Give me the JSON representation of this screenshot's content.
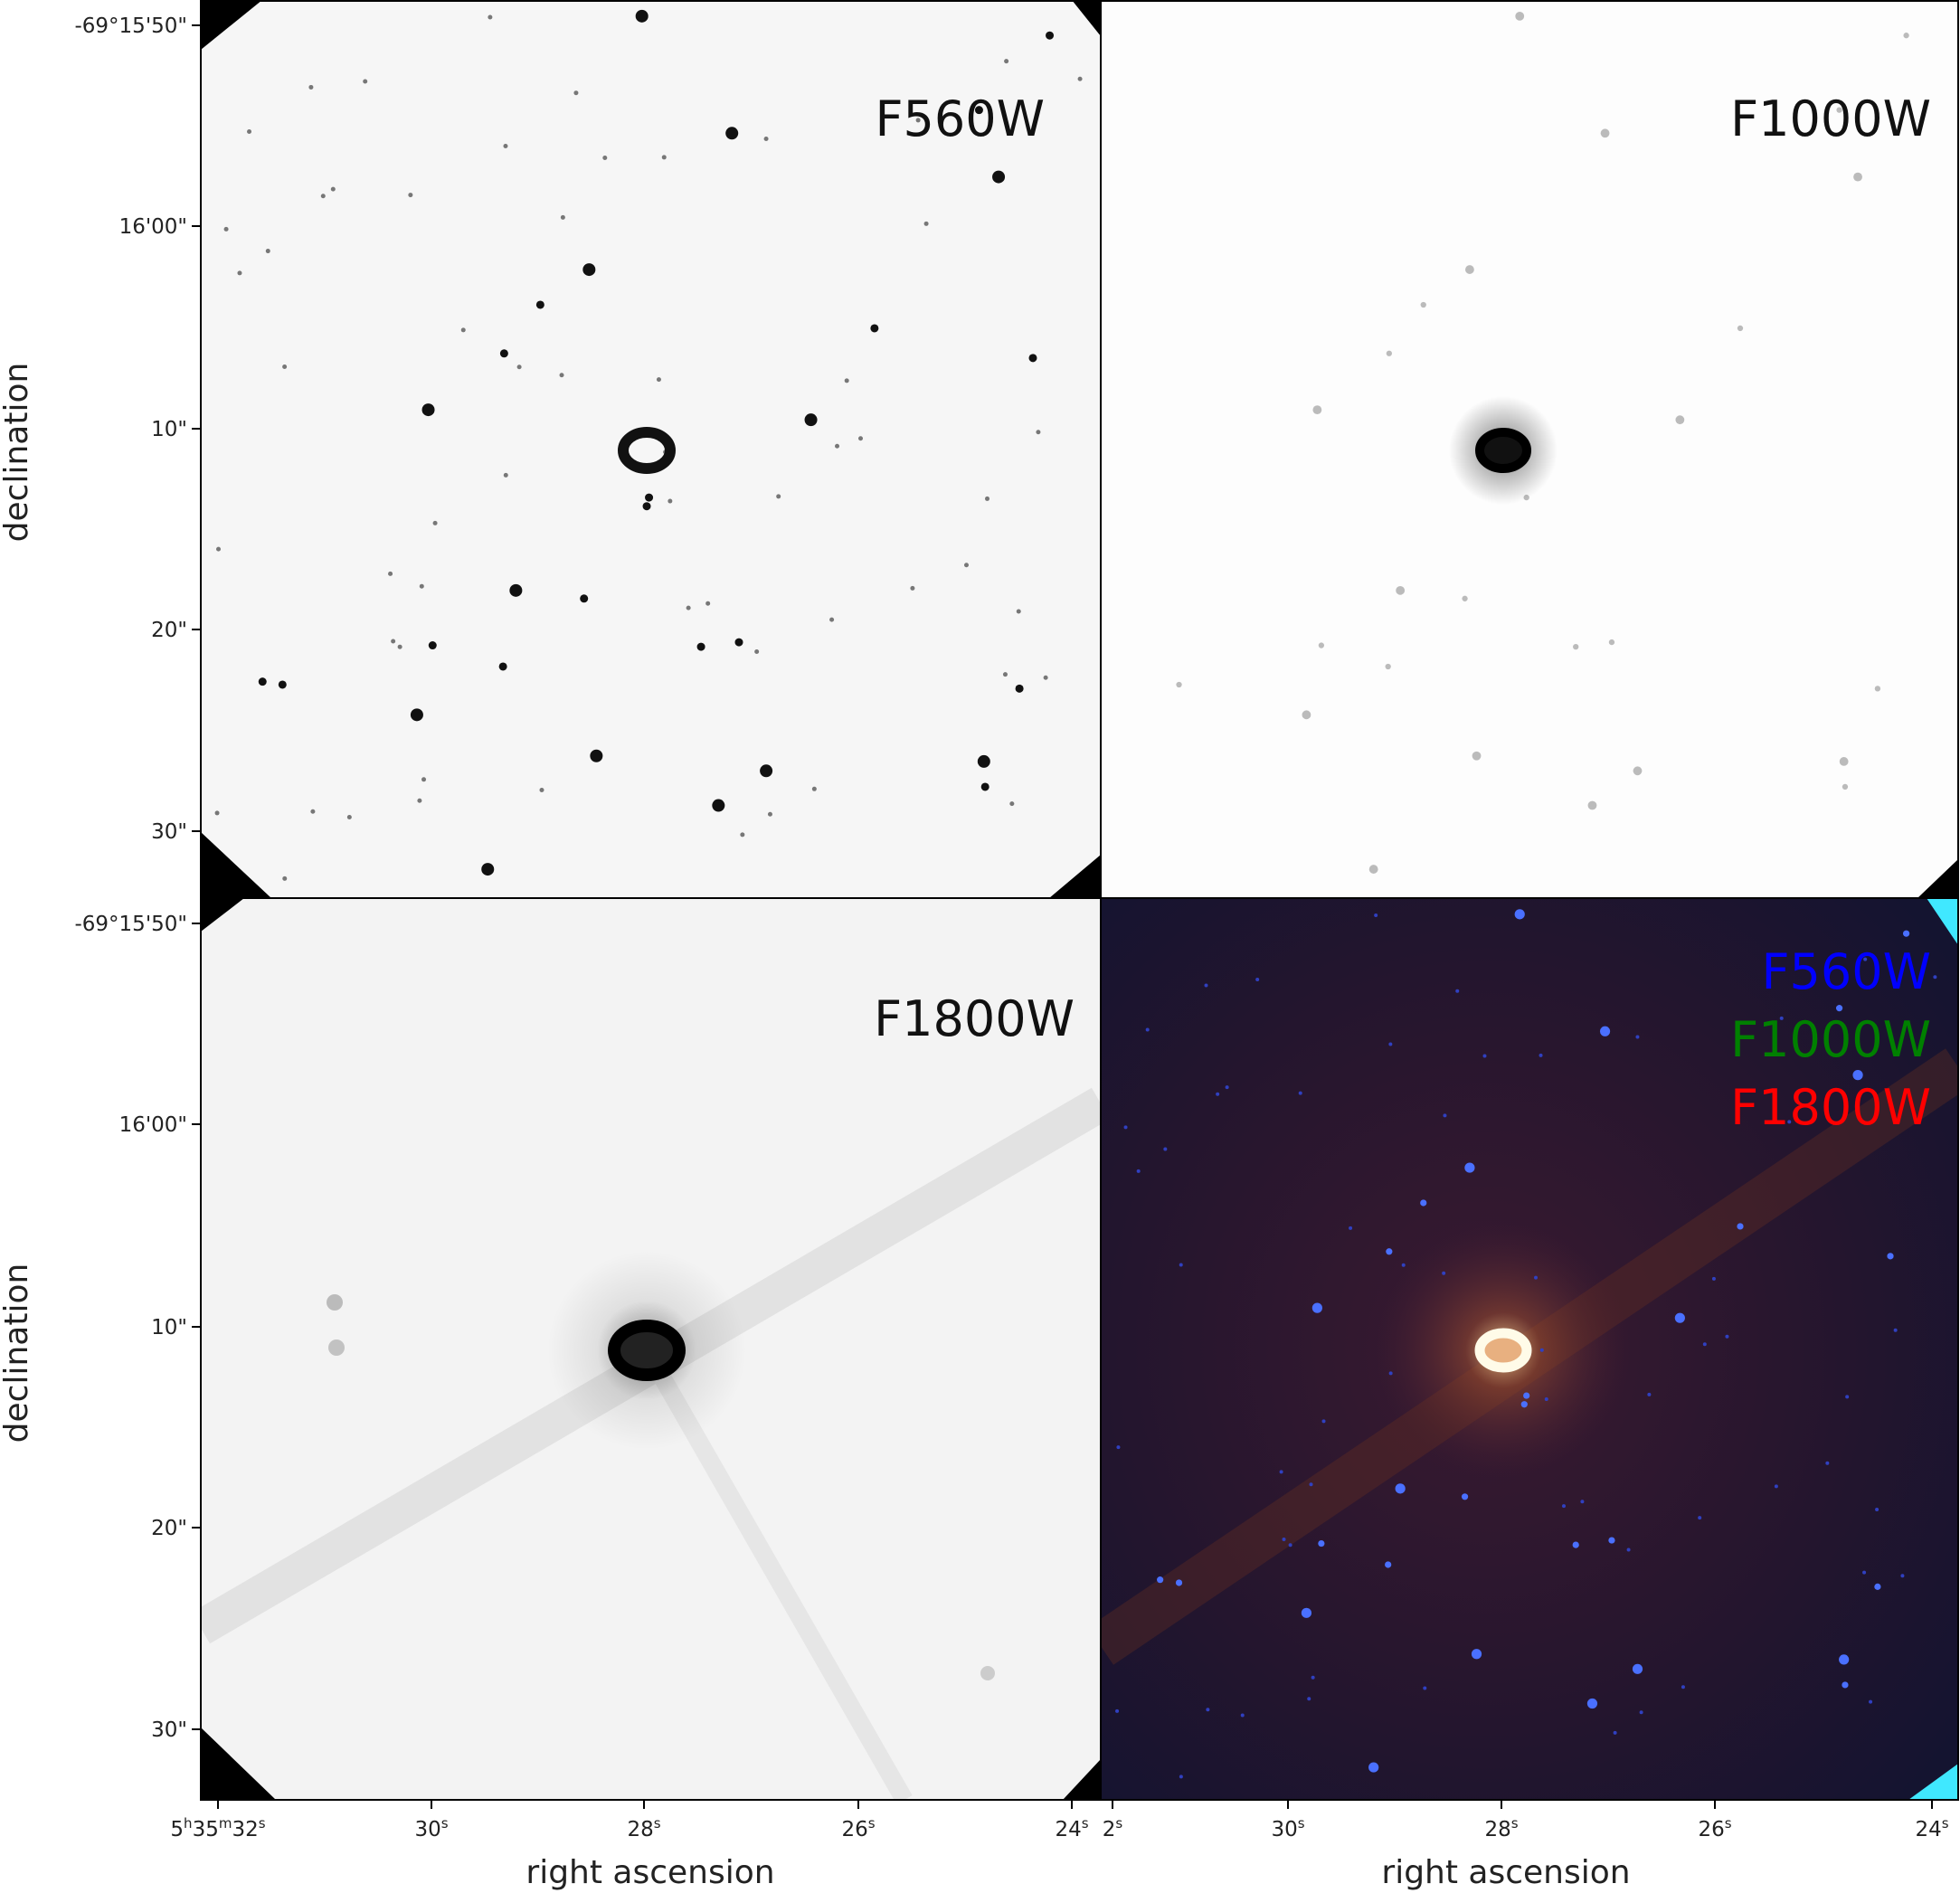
{
  "panels": [
    {
      "label": "F560W",
      "style": "grayscale"
    },
    {
      "label": "F1000W",
      "style": "grayscale"
    },
    {
      "label": "F1800W",
      "style": "grayscale"
    },
    {
      "style": "rgb-composite",
      "legend": [
        {
          "label": "F560W",
          "color": "#0000ff"
        },
        {
          "label": "F1000W",
          "color": "#008000"
        },
        {
          "label": "F1800W",
          "color": "#ff0000"
        }
      ]
    }
  ],
  "axes": {
    "ylabel": "declination",
    "xlabel": "right ascension",
    "yticks": [
      "-69°15'50\"",
      "16'00\"",
      "10\"",
      "20\"",
      "30\""
    ],
    "xticks_left": [
      "5h35m32s",
      "30s",
      "28s",
      "26s",
      "24s"
    ],
    "xticks_right": [
      "2s",
      "30s",
      "28s",
      "26s",
      "24s"
    ]
  }
}
